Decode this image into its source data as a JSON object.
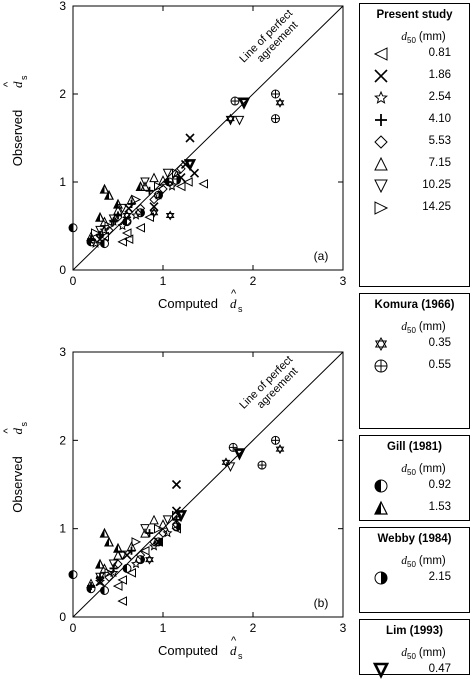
{
  "chart_data": [
    {
      "type": "scatter",
      "panel_label": "(a)",
      "xlabel": "Computed",
      "ylabel": "Observed",
      "symbol_text": "d",
      "symbol_hat": "^",
      "symbol_sub": "s",
      "xlim": [
        0,
        3
      ],
      "ylim": [
        0,
        3
      ],
      "x_ticks": [
        "0",
        "1",
        "2",
        "3"
      ],
      "y_ticks": [
        "0",
        "1",
        "2",
        "3"
      ],
      "line_annotation": [
        "Line of perfect",
        "agreement"
      ],
      "series": [
        {
          "marker": "tri-left",
          "points": [
            [
              0.55,
              0.32
            ],
            [
              0.62,
              0.35
            ],
            [
              0.6,
              0.42
            ],
            [
              0.75,
              0.48
            ],
            [
              0.85,
              0.6
            ],
            [
              1.2,
              0.95
            ],
            [
              1.28,
              1.0
            ],
            [
              1.45,
              0.98
            ],
            [
              0.35,
              0.38
            ]
          ]
        },
        {
          "marker": "x",
          "points": [
            [
              1.3,
              1.5
            ],
            [
              1.25,
              1.2
            ],
            [
              1.35,
              1.1
            ],
            [
              1.2,
              1.05
            ],
            [
              0.9,
              0.72
            ],
            [
              0.3,
              0.35
            ],
            [
              0.62,
              0.7
            ]
          ]
        },
        {
          "marker": "star",
          "points": [
            [
              0.25,
              0.3
            ],
            [
              0.35,
              0.45
            ],
            [
              0.55,
              0.5
            ],
            [
              0.7,
              0.62
            ],
            [
              0.95,
              0.85
            ],
            [
              1.1,
              0.95
            ],
            [
              0.45,
              0.55
            ]
          ]
        },
        {
          "marker": "plus",
          "points": [
            [
              0.3,
              0.4
            ],
            [
              0.45,
              0.55
            ],
            [
              0.65,
              0.75
            ],
            [
              0.85,
              0.9
            ],
            [
              1.05,
              1.0
            ],
            [
              0.2,
              0.35
            ],
            [
              0.5,
              0.62
            ]
          ]
        },
        {
          "marker": "diamond",
          "points": [
            [
              0.4,
              0.45
            ],
            [
              0.5,
              0.6
            ],
            [
              0.75,
              0.7
            ],
            [
              0.9,
              0.8
            ],
            [
              1.0,
              0.92
            ],
            [
              1.2,
              1.15
            ],
            [
              0.6,
              0.55
            ]
          ]
        },
        {
          "marker": "tri-up",
          "points": [
            [
              0.2,
              0.38
            ],
            [
              0.35,
              0.55
            ],
            [
              0.5,
              0.68
            ],
            [
              0.8,
              0.95
            ],
            [
              1.0,
              1.02
            ],
            [
              0.65,
              0.8
            ],
            [
              0.9,
              1.05
            ],
            [
              1.15,
              1.08
            ]
          ]
        },
        {
          "marker": "tri-down",
          "points": [
            [
              0.3,
              0.45
            ],
            [
              0.55,
              0.7
            ],
            [
              0.8,
              1.0
            ],
            [
              1.05,
              1.1
            ],
            [
              1.75,
              1.7
            ],
            [
              1.85,
              1.7
            ],
            [
              0.45,
              0.58
            ]
          ]
        },
        {
          "marker": "tri-right",
          "points": [
            [
              0.4,
              0.5
            ],
            [
              0.7,
              0.8
            ],
            [
              0.95,
              0.95
            ],
            [
              1.15,
              1.1
            ],
            [
              0.25,
              0.42
            ]
          ]
        },
        {
          "marker": "hexstar",
          "points": [
            [
              0.9,
              0.65
            ],
            [
              1.08,
              0.62
            ],
            [
              1.75,
              1.72
            ],
            [
              2.3,
              1.9
            ],
            [
              0.6,
              0.62
            ]
          ]
        },
        {
          "marker": "circle-plus",
          "points": [
            [
              1.8,
              1.92
            ],
            [
              2.25,
              2.0
            ],
            [
              2.25,
              1.72
            ]
          ]
        },
        {
          "marker": "half-left",
          "points": [
            [
              0.0,
              0.48
            ],
            [
              0.2,
              0.32
            ],
            [
              0.35,
              0.3
            ],
            [
              1.07,
              1.0
            ],
            [
              0.6,
              0.55
            ]
          ]
        },
        {
          "marker": "tri-bold",
          "points": [
            [
              0.35,
              0.92
            ],
            [
              0.4,
              0.85
            ],
            [
              0.3,
              0.6
            ],
            [
              0.5,
              0.75
            ],
            [
              0.75,
              0.95
            ]
          ]
        },
        {
          "marker": "half-right",
          "points": [
            [
              0.75,
              0.65
            ],
            [
              0.95,
              0.85
            ],
            [
              1.15,
              1.02
            ]
          ]
        },
        {
          "marker": "tri-down-bold",
          "points": [
            [
              1.9,
              1.9
            ],
            [
              1.3,
              1.2
            ]
          ]
        }
      ]
    },
    {
      "type": "scatter",
      "panel_label": "(b)",
      "xlabel": "Computed",
      "ylabel": "Observed",
      "symbol_text": "d",
      "symbol_hat": "^",
      "symbol_sub": "s",
      "xlim": [
        0,
        3
      ],
      "ylim": [
        0,
        3
      ],
      "x_ticks": [
        "0",
        "1",
        "2",
        "3"
      ],
      "y_ticks": [
        "0",
        "1",
        "2",
        "3"
      ],
      "line_annotation": [
        "Line of perfect",
        "agreement"
      ],
      "series": [
        {
          "marker": "tri-left",
          "points": [
            [
              0.55,
              0.42
            ],
            [
              0.5,
              0.35
            ],
            [
              0.65,
              0.5
            ],
            [
              0.8,
              0.75
            ],
            [
              1.15,
              1.0
            ],
            [
              0.95,
              0.85
            ],
            [
              0.55,
              0.18
            ]
          ]
        },
        {
          "marker": "x",
          "points": [
            [
              1.15,
              1.5
            ],
            [
              1.15,
              1.2
            ],
            [
              0.95,
              0.85
            ],
            [
              0.3,
              0.4
            ],
            [
              0.6,
              0.7
            ]
          ]
        },
        {
          "marker": "star",
          "points": [
            [
              0.3,
              0.4
            ],
            [
              0.45,
              0.5
            ],
            [
              0.7,
              0.6
            ],
            [
              0.9,
              0.8
            ],
            [
              1.05,
              0.95
            ]
          ]
        },
        {
          "marker": "plus",
          "points": [
            [
              0.3,
              0.45
            ],
            [
              0.45,
              0.55
            ],
            [
              0.65,
              0.75
            ],
            [
              0.85,
              0.95
            ],
            [
              1.15,
              1.1
            ],
            [
              0.2,
              0.35
            ]
          ]
        },
        {
          "marker": "diamond",
          "points": [
            [
              0.4,
              0.45
            ],
            [
              0.5,
              0.6
            ],
            [
              0.75,
              0.7
            ],
            [
              0.9,
              0.85
            ],
            [
              1.0,
              0.95
            ],
            [
              1.15,
              1.05
            ]
          ]
        },
        {
          "marker": "tri-up",
          "points": [
            [
              0.2,
              0.38
            ],
            [
              0.35,
              0.55
            ],
            [
              0.5,
              0.7
            ],
            [
              0.8,
              0.95
            ],
            [
              1.0,
              1.05
            ],
            [
              0.65,
              0.8
            ],
            [
              0.9,
              1.1
            ]
          ]
        },
        {
          "marker": "tri-down",
          "points": [
            [
              0.3,
              0.45
            ],
            [
              0.55,
              0.7
            ],
            [
              0.8,
              1.0
            ],
            [
              1.05,
              1.1
            ],
            [
              1.75,
              1.7
            ],
            [
              0.45,
              0.6
            ]
          ]
        },
        {
          "marker": "tri-right",
          "points": [
            [
              0.4,
              0.5
            ],
            [
              0.7,
              0.85
            ],
            [
              0.95,
              1.0
            ],
            [
              1.15,
              1.15
            ]
          ]
        },
        {
          "marker": "hexstar",
          "points": [
            [
              0.85,
              0.65
            ],
            [
              1.7,
              1.75
            ],
            [
              2.3,
              1.9
            ]
          ]
        },
        {
          "marker": "circle-plus",
          "points": [
            [
              1.78,
              1.92
            ],
            [
              2.25,
              2.0
            ],
            [
              2.1,
              1.72
            ]
          ]
        },
        {
          "marker": "half-left",
          "points": [
            [
              0.0,
              0.48
            ],
            [
              0.2,
              0.32
            ],
            [
              0.35,
              0.3
            ],
            [
              0.6,
              0.55
            ]
          ]
        },
        {
          "marker": "tri-bold",
          "points": [
            [
              0.4,
              0.85
            ],
            [
              0.3,
              0.6
            ],
            [
              0.5,
              0.78
            ],
            [
              0.35,
              0.95
            ]
          ]
        },
        {
          "marker": "half-right",
          "points": [
            [
              0.75,
              0.65
            ],
            [
              0.95,
              0.85
            ],
            [
              1.15,
              1.02
            ]
          ]
        },
        {
          "marker": "tri-down-bold",
          "points": [
            [
              1.85,
              1.85
            ],
            [
              1.2,
              1.15
            ]
          ]
        }
      ]
    }
  ],
  "legend": {
    "unit_text": "(mm)",
    "unit_symbol": "d",
    "unit_sub": "50",
    "groups": [
      {
        "title": "Present study",
        "items": [
          {
            "marker": "tri-left",
            "value": "0.81"
          },
          {
            "marker": "x",
            "value": "1.86"
          },
          {
            "marker": "star",
            "value": "2.54"
          },
          {
            "marker": "plus",
            "value": "4.10"
          },
          {
            "marker": "diamond",
            "value": "5.53"
          },
          {
            "marker": "tri-up",
            "value": "7.15"
          },
          {
            "marker": "tri-down",
            "value": "10.25"
          },
          {
            "marker": "tri-right",
            "value": "14.25"
          }
        ]
      },
      {
        "title": "Komura (1966)",
        "items": [
          {
            "marker": "hexstar",
            "value": "0.35"
          },
          {
            "marker": "circle-plus",
            "value": "0.55"
          }
        ]
      },
      {
        "title": "Gill (1981)",
        "items": [
          {
            "marker": "half-left",
            "value": "0.92"
          },
          {
            "marker": "tri-bold",
            "value": "1.53"
          }
        ]
      },
      {
        "title": "Webby (1984)",
        "items": [
          {
            "marker": "half-right",
            "value": "2.15"
          }
        ]
      },
      {
        "title": "Lim (1993)",
        "items": [
          {
            "marker": "tri-down-bold",
            "value": "0.47"
          }
        ]
      }
    ]
  }
}
